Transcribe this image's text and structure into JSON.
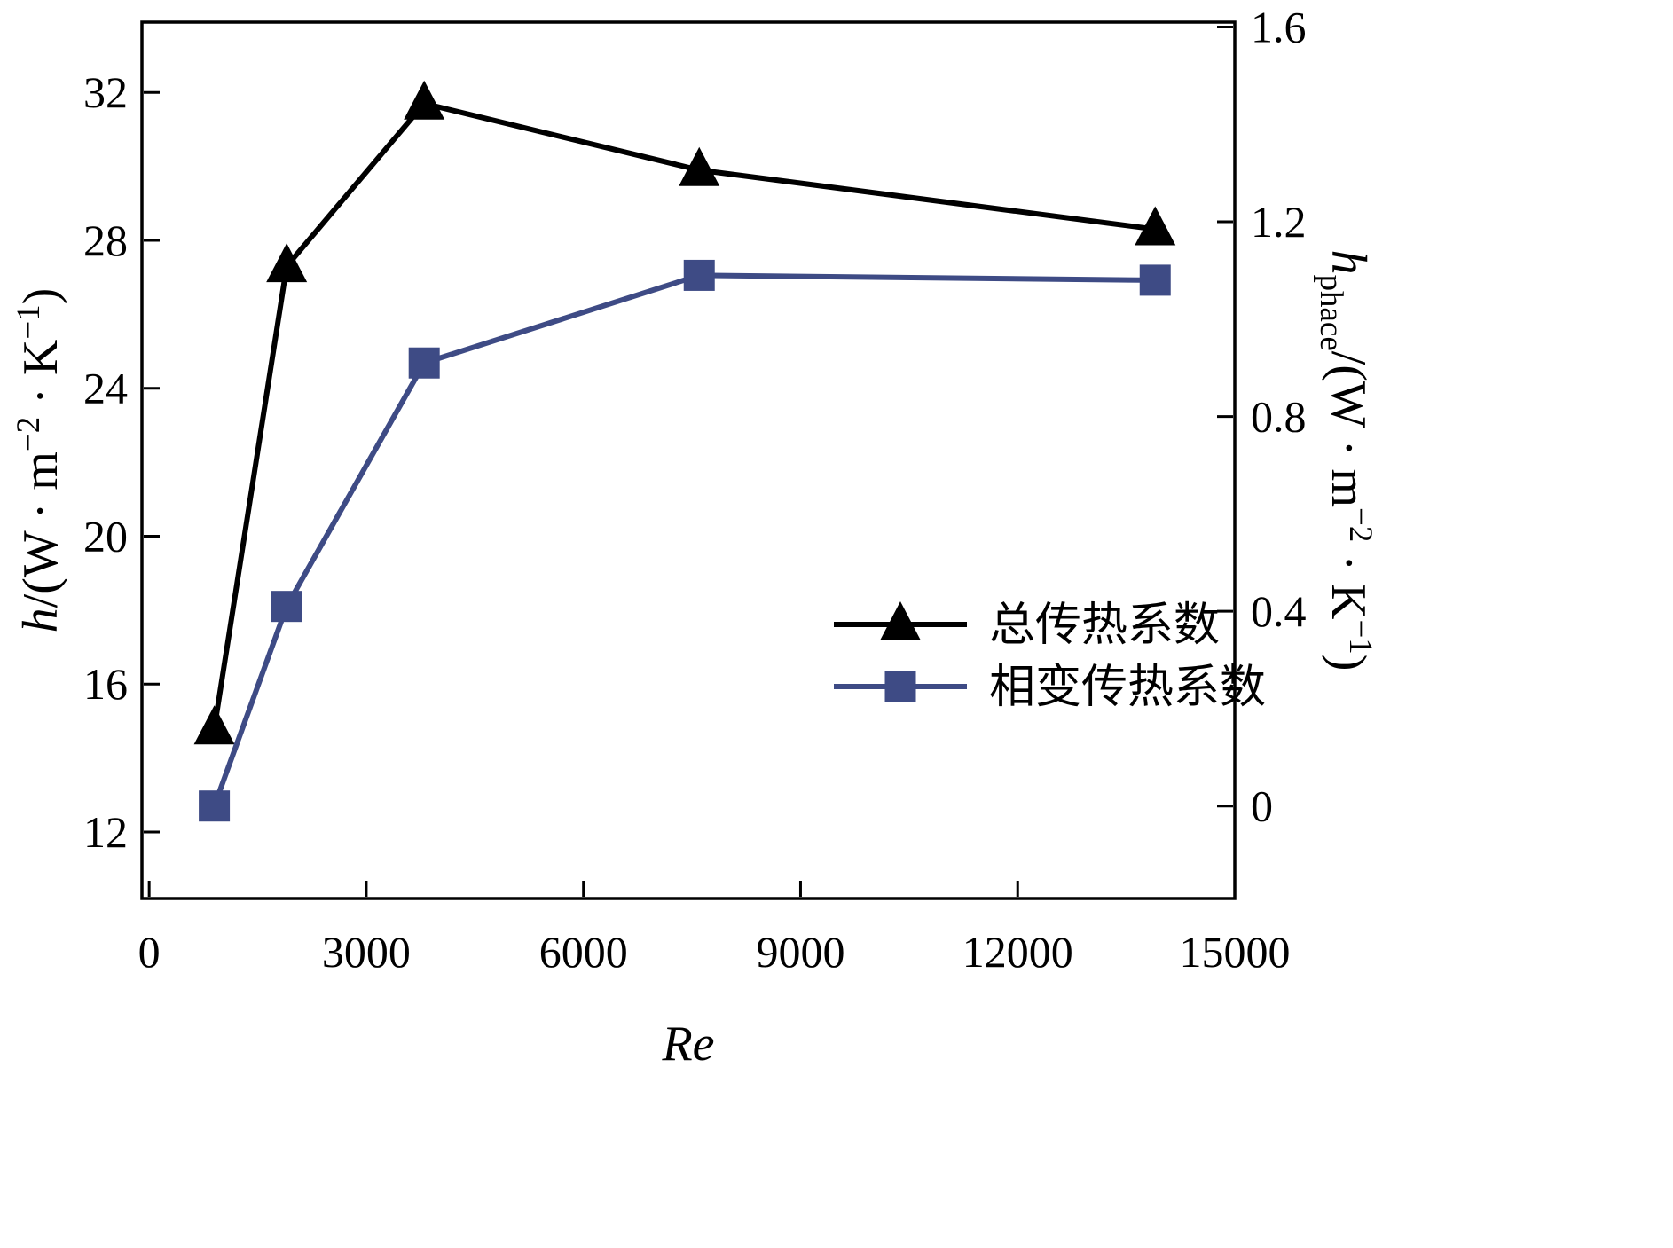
{
  "figure": {
    "background": "#ffffff",
    "frame_color": "#000000"
  },
  "chart_data": {
    "type": "line",
    "title": "",
    "xlabel": "Re",
    "xlabel_parts": [
      {
        "t": "Re",
        "style": "italic"
      }
    ],
    "x_ticks": [
      0,
      3000,
      6000,
      9000,
      12000,
      15000
    ],
    "xlim": [
      -100,
      15000
    ],
    "grid": false,
    "axes": {
      "left": {
        "label_text": "h/(W · m−2 · K−1)",
        "label_parts": [
          {
            "t": "h",
            "style": "italic"
          },
          {
            "t": "/(W · m",
            "style": "normal"
          },
          {
            "t": "−2",
            "style": "sup"
          },
          {
            "t": " · K",
            "style": "normal"
          },
          {
            "t": "−1",
            "style": "sup"
          },
          {
            "t": ")",
            "style": "normal"
          }
        ],
        "ticks": [
          12,
          16,
          20,
          24,
          28,
          32
        ],
        "lim": [
          10.2,
          33.9
        ]
      },
      "right": {
        "label_text": "h_phace/(W · m−2 · K−1)",
        "label_parts": [
          {
            "t": "h",
            "style": "italic"
          },
          {
            "t": "phace",
            "style": "sub"
          },
          {
            "t": "/(W · m",
            "style": "normal"
          },
          {
            "t": "−2",
            "style": "sup"
          },
          {
            "t": " · K",
            "style": "normal"
          },
          {
            "t": "−1",
            "style": "sup"
          },
          {
            "t": ")",
            "style": "normal"
          }
        ],
        "ticks": [
          0,
          0.4,
          0.8,
          1.2,
          1.6
        ],
        "lim": [
          -0.19,
          1.61
        ]
      }
    },
    "series": [
      {
        "name": "总传热系数",
        "axis": "left",
        "marker": "triangle",
        "color": "#000000",
        "x": [
          900,
          1900,
          3800,
          7600,
          13900
        ],
        "y": [
          14.8,
          27.3,
          31.7,
          29.9,
          28.3
        ]
      },
      {
        "name": "相变传热系数",
        "axis": "right",
        "marker": "square",
        "color": "#3e4b85",
        "x": [
          900,
          1900,
          3800,
          7600,
          13900
        ],
        "y": [
          0.0,
          0.41,
          0.91,
          1.09,
          1.08
        ]
      }
    ],
    "legend": {
      "position": "inside-right-middle",
      "entries": [
        "总传热系数",
        "相变传热系数"
      ]
    }
  }
}
